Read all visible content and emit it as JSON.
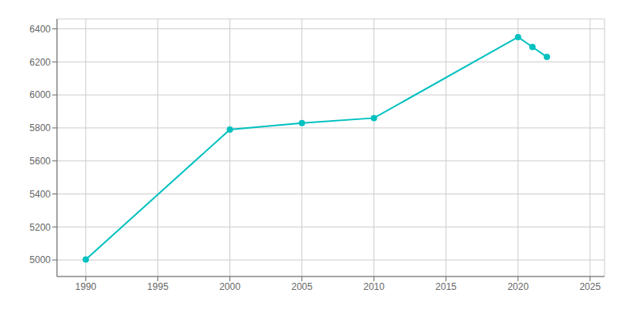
{
  "chart_data": {
    "type": "line",
    "x": [
      1990,
      2000,
      2005,
      2010,
      2020,
      2021,
      2022
    ],
    "values": [
      5003,
      5790,
      5830,
      5860,
      6350,
      6290,
      6230
    ],
    "color": "#00C0C0",
    "marker": "circle",
    "xlim": [
      1988,
      2026
    ],
    "ylim": [
      4900,
      6460
    ],
    "xticks": [
      1990,
      1995,
      2000,
      2005,
      2010,
      2015,
      2020,
      2025
    ],
    "yticks": [
      5000,
      5200,
      5400,
      5600,
      5800,
      6000,
      6200,
      6400
    ],
    "grid": true
  }
}
